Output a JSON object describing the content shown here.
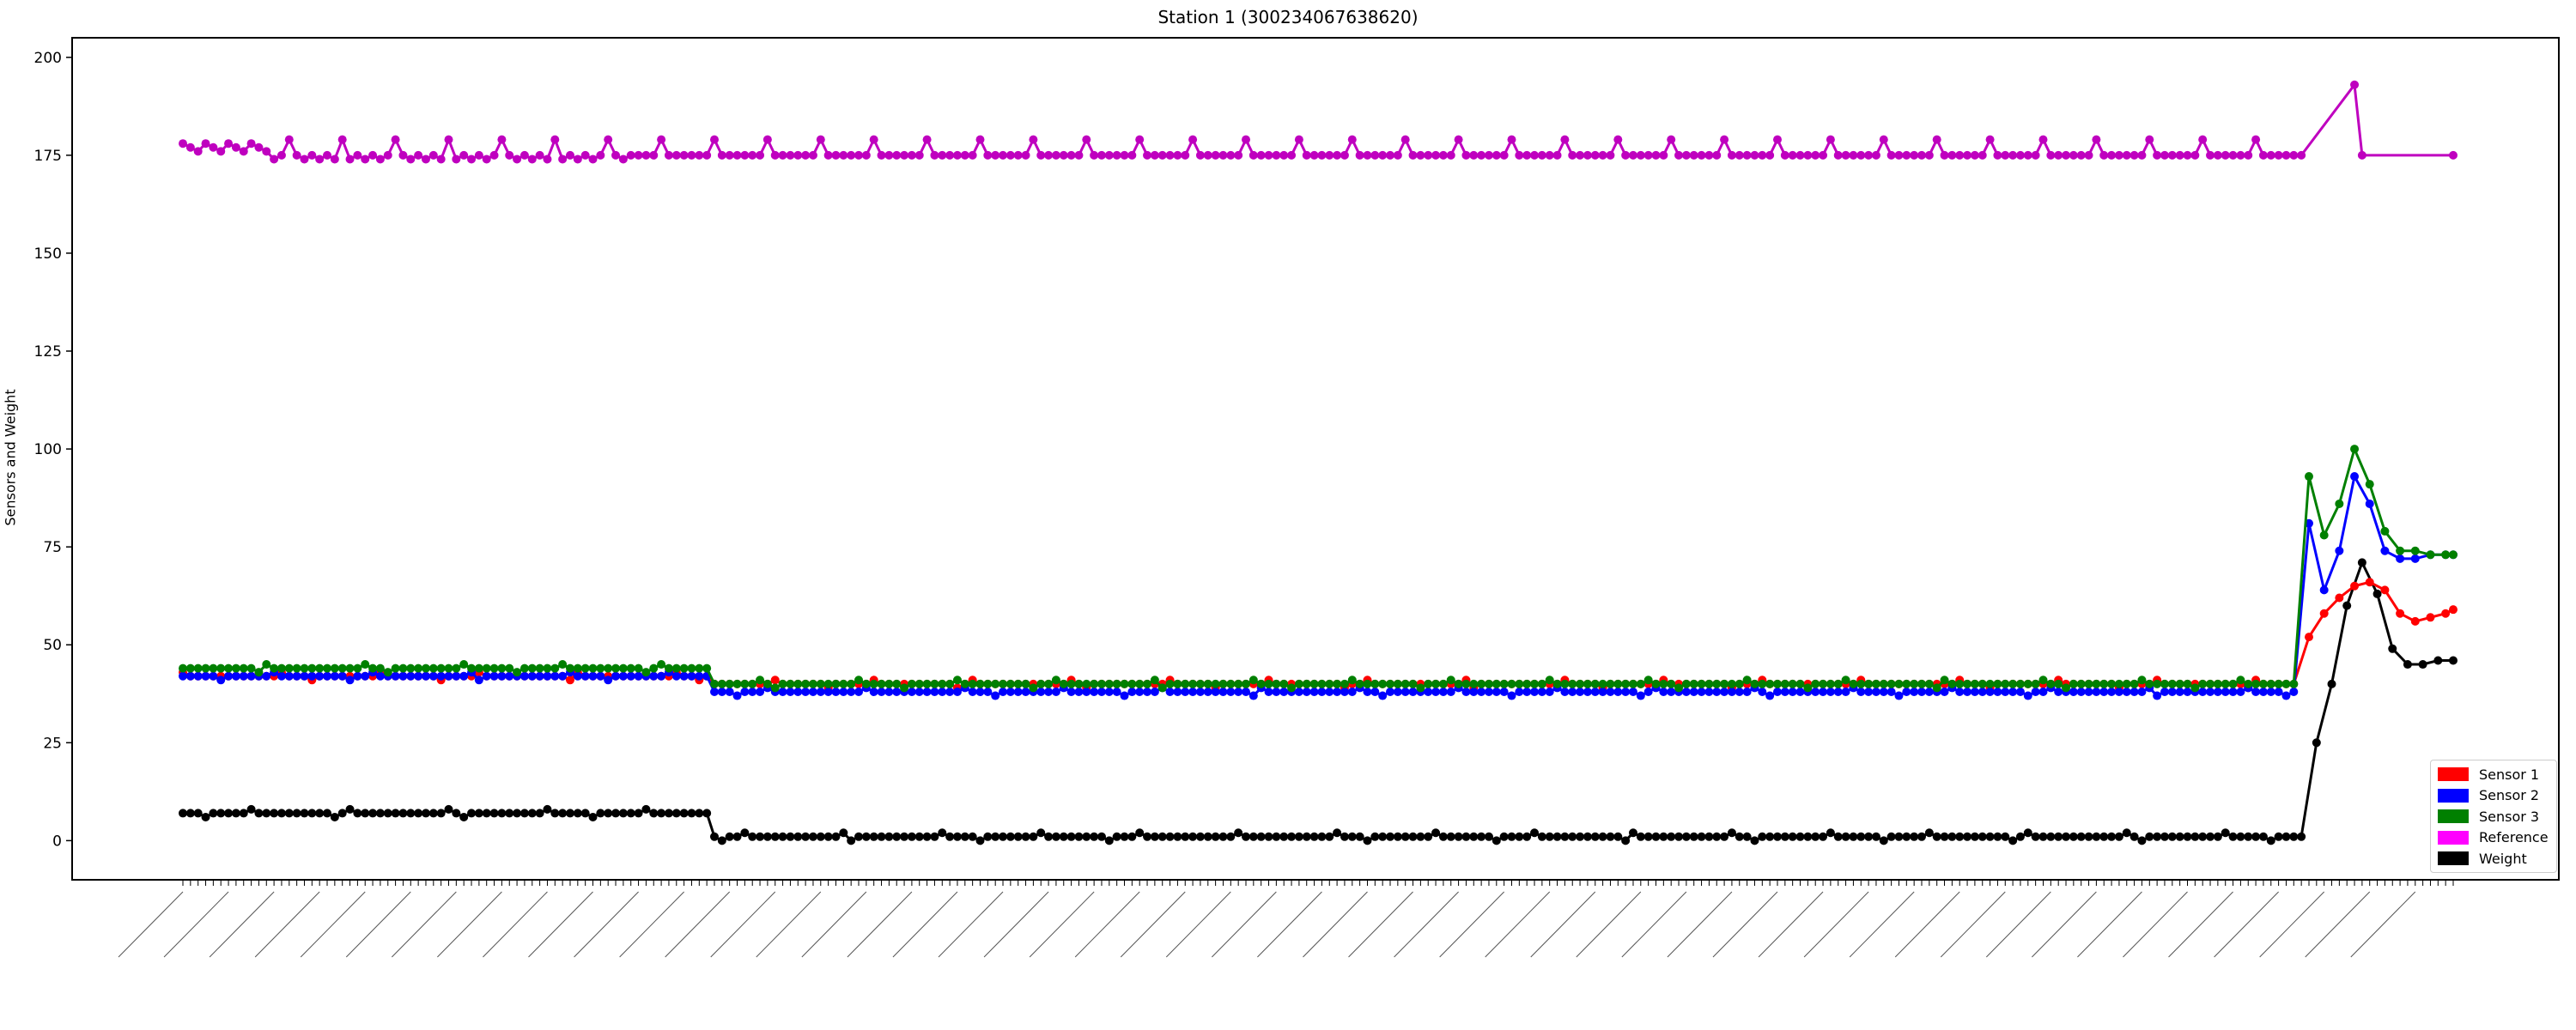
{
  "chart_data": {
    "type": "line",
    "title": "Station 1 (300234067638620)",
    "xlabel": "",
    "ylabel": "Sensors and Weight",
    "ylim": [
      -10,
      205
    ],
    "yticks": [
      0,
      25,
      50,
      75,
      100,
      125,
      150,
      175,
      200
    ],
    "x_note": "x tick labels are dense, overlapping datetime strings (unreadable); e.g. 2019-12-18 12:00:38",
    "num_points": 300,
    "legend_position": "lower-right",
    "grid": false,
    "series": [
      {
        "name": "Sensor 1",
        "color": "#ff0000",
        "segments": [
          {
            "from": 0,
            "to": 69,
            "value": 42
          },
          {
            "from": 70,
            "to": 279,
            "value": 40
          }
        ],
        "tail": [
          {
            "x": 278,
            "y": 40
          },
          {
            "x": 280,
            "y": 52
          },
          {
            "x": 282,
            "y": 58
          },
          {
            "x": 284,
            "y": 62
          },
          {
            "x": 286,
            "y": 65
          },
          {
            "x": 288,
            "y": 66
          },
          {
            "x": 290,
            "y": 64
          },
          {
            "x": 292,
            "y": 58
          },
          {
            "x": 294,
            "y": 56
          },
          {
            "x": 296,
            "y": 57
          },
          {
            "x": 298,
            "y": 58
          },
          {
            "x": 299,
            "y": 59
          }
        ]
      },
      {
        "name": "Sensor 2",
        "color": "#0000ff",
        "segments": [
          {
            "from": 0,
            "to": 69,
            "value": 42
          },
          {
            "from": 70,
            "to": 279,
            "value": 38
          }
        ],
        "tail": [
          {
            "x": 278,
            "y": 38
          },
          {
            "x": 280,
            "y": 81
          },
          {
            "x": 282,
            "y": 64
          },
          {
            "x": 284,
            "y": 74
          },
          {
            "x": 286,
            "y": 93
          },
          {
            "x": 288,
            "y": 86
          },
          {
            "x": 290,
            "y": 74
          },
          {
            "x": 292,
            "y": 72
          },
          {
            "x": 294,
            "y": 72
          },
          {
            "x": 296,
            "y": 73
          },
          {
            "x": 298,
            "y": 73
          },
          {
            "x": 299,
            "y": 73
          }
        ]
      },
      {
        "name": "Sensor 3",
        "color": "#008000",
        "segments": [
          {
            "from": 0,
            "to": 69,
            "value": 44
          },
          {
            "from": 70,
            "to": 279,
            "value": 40
          }
        ],
        "tail": [
          {
            "x": 278,
            "y": 40
          },
          {
            "x": 280,
            "y": 93
          },
          {
            "x": 282,
            "y": 78
          },
          {
            "x": 284,
            "y": 86
          },
          {
            "x": 286,
            "y": 100
          },
          {
            "x": 288,
            "y": 91
          },
          {
            "x": 290,
            "y": 79
          },
          {
            "x": 292,
            "y": 74
          },
          {
            "x": 294,
            "y": 74
          },
          {
            "x": 296,
            "y": 73
          },
          {
            "x": 298,
            "y": 73
          },
          {
            "x": 299,
            "y": 73
          }
        ]
      },
      {
        "name": "Reference",
        "color": "#ff00ff",
        "draw_color": "#bf00bf",
        "base": 175,
        "periodic_peak": {
          "every": 7,
          "value": 179
        },
        "tail": [
          {
            "x": 279,
            "y": 175
          },
          {
            "x": 286,
            "y": 193
          },
          {
            "x": 287,
            "y": 175
          },
          {
            "x": 299,
            "y": 175
          }
        ]
      },
      {
        "name": "Weight",
        "color": "#000000",
        "segments": [
          {
            "from": 0,
            "to": 69,
            "value": 7
          },
          {
            "from": 70,
            "to": 279,
            "value": 1
          }
        ],
        "tail": [
          {
            "x": 279,
            "y": 1
          },
          {
            "x": 281,
            "y": 25
          },
          {
            "x": 283,
            "y": 40
          },
          {
            "x": 285,
            "y": 60
          },
          {
            "x": 287,
            "y": 71
          },
          {
            "x": 289,
            "y": 63
          },
          {
            "x": 291,
            "y": 49
          },
          {
            "x": 293,
            "y": 45
          },
          {
            "x": 295,
            "y": 45
          },
          {
            "x": 297,
            "y": 46
          },
          {
            "x": 299,
            "y": 46
          }
        ]
      }
    ]
  }
}
